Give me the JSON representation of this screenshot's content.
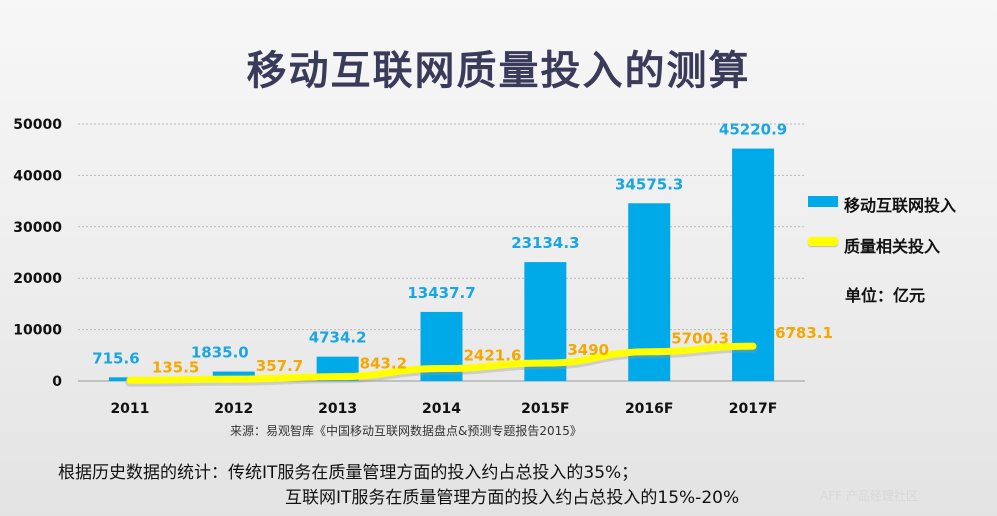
{
  "title": "移动互联网质量投入的测算",
  "source": "来源：易观智库《中国移动互联网数据盘点&预测专题报告2015》",
  "notes": [
    "根据历史数据的统计：传统IT服务在质量管理方面的投入约占总投入的35%；",
    "互联网IT服务在质量管理方面的投入约占总投入的15%-20%"
  ],
  "unit": "单位：亿元",
  "watermark": "AFF 产品经理社区",
  "colors": {
    "bar": "#00a9e8",
    "line": "#ffff00",
    "bar_label": "#1aa6e0",
    "line_label": "#f5a800"
  },
  "chart_data": {
    "type": "bar",
    "categories": [
      "2011",
      "2012",
      "2013",
      "2014",
      "2015F",
      "2016F",
      "2017F"
    ],
    "series": [
      {
        "name": "移动互联网投入",
        "type": "bar",
        "values": [
          715.6,
          1835.0,
          4734.2,
          13437.7,
          23134.3,
          34575.3,
          45220.9
        ],
        "labels": [
          "715.6",
          "1835.0",
          "4734.2",
          "13437.7",
          "23134.3",
          "34575.3",
          "45220.9"
        ]
      },
      {
        "name": "质量相关投入",
        "type": "line",
        "values": [
          135.5,
          357.7,
          843.2,
          2421.6,
          3490,
          5700.3,
          6783.1
        ],
        "labels": [
          "135.5",
          "357.7",
          "843.2",
          "2421.6",
          "3490",
          "5700.3",
          "6783.1"
        ]
      }
    ],
    "ylim": [
      0,
      50000
    ],
    "yticks": [
      0,
      10000,
      20000,
      30000,
      40000,
      50000
    ],
    "grid": true,
    "legend": "right"
  }
}
